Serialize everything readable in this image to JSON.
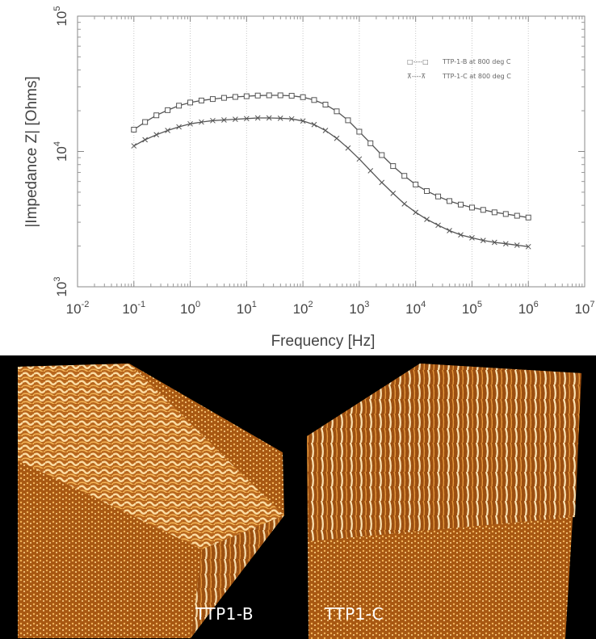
{
  "chart_data": {
    "type": "line",
    "xlabel": "Frequency [Hz]",
    "ylabel": "|Impedance Z| [Ohms]",
    "x_scale": "log",
    "y_scale": "log",
    "xlim": [
      0.01,
      10000000
    ],
    "ylim": [
      1000,
      100000
    ],
    "x_ticks": [
      {
        "base": "10",
        "exp": "-2",
        "value": 0.01
      },
      {
        "base": "10",
        "exp": "-1",
        "value": 0.1
      },
      {
        "base": "10",
        "exp": "0",
        "value": 1
      },
      {
        "base": "10",
        "exp": "1",
        "value": 10
      },
      {
        "base": "10",
        "exp": "2",
        "value": 100
      },
      {
        "base": "10",
        "exp": "3",
        "value": 1000
      },
      {
        "base": "10",
        "exp": "4",
        "value": 10000
      },
      {
        "base": "10",
        "exp": "5",
        "value": 100000
      },
      {
        "base": "10",
        "exp": "6",
        "value": 1000000
      },
      {
        "base": "10",
        "exp": "7",
        "value": 10000000
      }
    ],
    "y_ticks": [
      {
        "base": "10",
        "exp": "3",
        "value": 1000
      },
      {
        "base": "10",
        "exp": "4",
        "value": 10000
      },
      {
        "base": "10",
        "exp": "5",
        "value": 100000
      }
    ],
    "grid": "vertical dotted at major x ticks",
    "legend_position": "top-right",
    "series": [
      {
        "name": "TTP-1-B at 800 deg C",
        "legend_symbol": "□----□",
        "marker": "square",
        "color": "#555555",
        "x": [
          0.1,
          0.158,
          0.251,
          0.398,
          0.631,
          1,
          1.58,
          2.51,
          3.98,
          6.31,
          10,
          15.8,
          25.1,
          39.8,
          63.1,
          100,
          158,
          251,
          398,
          631,
          1000,
          1580,
          2510,
          3980,
          6310,
          10000,
          15800,
          25100,
          39800,
          63100,
          100000,
          158000,
          251000,
          398000,
          631000,
          1000000
        ],
        "y": [
          14500,
          16500,
          18500,
          20200,
          21800,
          23000,
          23800,
          24400,
          24900,
          25300,
          25600,
          25900,
          26000,
          26000,
          25800,
          25200,
          24000,
          22200,
          19800,
          17000,
          14000,
          11500,
          9400,
          7800,
          6600,
          5700,
          5100,
          4650,
          4300,
          4050,
          3850,
          3700,
          3550,
          3450,
          3350,
          3250
        ]
      },
      {
        "name": "TTP-1-C at 800 deg C",
        "legend_symbol": "⊼----⊼",
        "marker": "x",
        "color": "#555555",
        "x": [
          0.1,
          0.158,
          0.251,
          0.398,
          0.631,
          1,
          1.58,
          2.51,
          3.98,
          6.31,
          10,
          15.8,
          25.1,
          39.8,
          63.1,
          100,
          158,
          251,
          398,
          631,
          1000,
          1580,
          2510,
          3980,
          6310,
          10000,
          15800,
          25100,
          39800,
          63100,
          100000,
          158000,
          251000,
          398000,
          631000,
          1000000
        ],
        "y": [
          11000,
          12200,
          13300,
          14300,
          15200,
          16000,
          16500,
          16900,
          17100,
          17300,
          17500,
          17700,
          17700,
          17600,
          17400,
          16800,
          15800,
          14300,
          12500,
          10600,
          8800,
          7200,
          5900,
          4900,
          4100,
          3550,
          3150,
          2850,
          2600,
          2420,
          2300,
          2200,
          2130,
          2080,
          2030,
          1980
        ]
      }
    ]
  },
  "image_panel": {
    "labels": [
      "TTP1-B",
      "TTP1-C"
    ]
  }
}
